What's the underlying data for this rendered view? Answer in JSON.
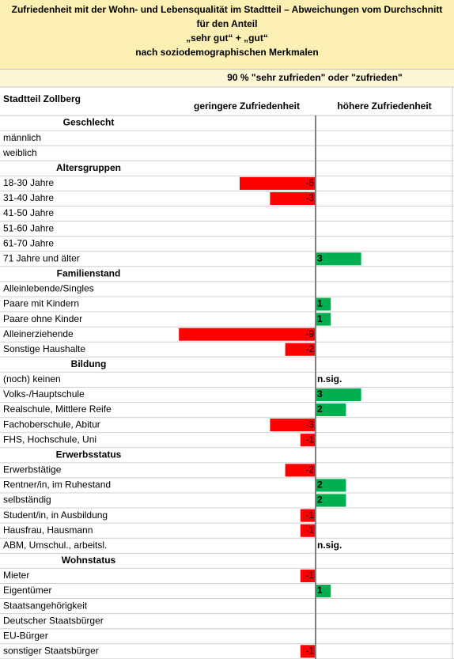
{
  "chart_data": {
    "type": "diverging-bar",
    "title": "Zufriedenheit mit der Wohn- und Lebensqualität im Stadtteil – Abweichungen vom Durchschnitt für den Anteil",
    "subtitle": [
      "„sehr gut“ + „gut“",
      "nach soziodemographischen Merkmalen"
    ],
    "measure": "90 % \"sehr zufrieden\" oder \"zufrieden\"",
    "area": "Stadtteil Zollberg",
    "negative_label": "geringere Zufriedenheit",
    "positive_label": "höhere Zufriedenheit",
    "colors": {
      "negative": "#ff0000",
      "positive": "#00b050"
    },
    "groups": [
      {
        "name": "Geschlecht",
        "rows": [
          {
            "label": "männlich",
            "value": null
          },
          {
            "label": "weiblich",
            "value": null
          }
        ]
      },
      {
        "name": "Altersgruppen",
        "rows": [
          {
            "label": "18-30 Jahre",
            "value": -5
          },
          {
            "label": "31-40 Jahre",
            "value": -3
          },
          {
            "label": "41-50 Jahre",
            "value": null
          },
          {
            "label": "51-60 Jahre",
            "value": null
          },
          {
            "label": "61-70 Jahre",
            "value": null
          },
          {
            "label": "71 Jahre und älter",
            "value": 3
          }
        ]
      },
      {
        "name": "Familienstand",
        "rows": [
          {
            "label": "Alleinlebende/Singles",
            "value": null
          },
          {
            "label": "Paare mit Kindern",
            "value": 1
          },
          {
            "label": "Paare ohne Kinder",
            "value": 1
          },
          {
            "label": "Alleinerziehende",
            "value": -9
          },
          {
            "label": "Sonstige Haushalte",
            "value": -2
          }
        ]
      },
      {
        "name": "Bildung",
        "rows": [
          {
            "label": "(noch) keinen",
            "value": null,
            "note": "n.sig."
          },
          {
            "label": "Volks-/Hauptschule",
            "value": 3
          },
          {
            "label": "Realschule, Mittlere Reife",
            "value": 2
          },
          {
            "label": "Fachoberschule, Abitur",
            "value": -3
          },
          {
            "label": "FHS, Hochschule, Uni",
            "value": -1
          }
        ]
      },
      {
        "name": "Erwerbsstatus",
        "rows": [
          {
            "label": "Erwerbstätige",
            "value": -2
          },
          {
            "label": "Rentner/in, im Ruhestand",
            "value": 2
          },
          {
            "label": "selbständig",
            "value": 2
          },
          {
            "label": "Student/in, in Ausbildung",
            "value": -1
          },
          {
            "label": "Hausfrau, Hausmann",
            "value": -1
          },
          {
            "label": "ABM, Umschul., arbeitsl.",
            "value": null,
            "note": "n.sig."
          }
        ]
      },
      {
        "name": "Wohnstatus",
        "rows": [
          {
            "label": "Mieter",
            "value": -1
          },
          {
            "label": "Eigentümer",
            "value": 1
          },
          {
            "label": "Staatsangehörigkeit",
            "value": null
          },
          {
            "label": "Deutscher Staatsbürger",
            "value": null
          },
          {
            "label": "EU-Bürger",
            "value": null
          },
          {
            "label": "sonstiger Staatsbürger",
            "value": -1
          }
        ]
      }
    ]
  }
}
